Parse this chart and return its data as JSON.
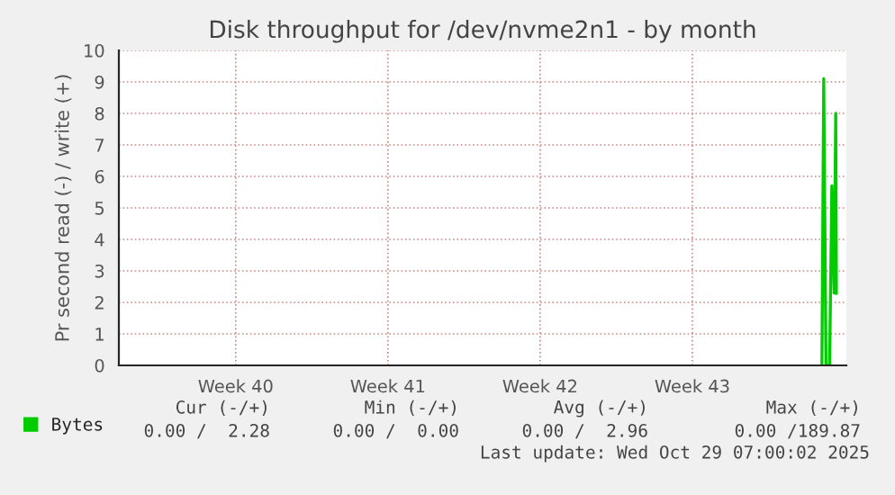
{
  "chart_data": {
    "type": "line",
    "title": "Disk throughput for /dev/nvme2n1 - by month",
    "ylabel": "Pr second read (-) / write (+)",
    "x": [
      "2025-10-28T04:00",
      "2025-10-28T06:00",
      "2025-10-28T08:30",
      "2025-10-28T12:30",
      "2025-10-28T15:00",
      "2025-10-28T17:30",
      "2025-10-28T19:15",
      "2025-10-28T20:00"
    ],
    "series": [
      {
        "name": "Bytes",
        "color": "#00cc00",
        "values": [
          0,
          9.1,
          0,
          0,
          5.7,
          2.3,
          8.0,
          2.28
        ]
      }
    ],
    "xlim": [
      "2025-09-25T20:00",
      "2025-10-29T07:00"
    ],
    "xticks": [
      {
        "value": "2025-10-01T05:00",
        "label": "Week 40"
      },
      {
        "value": "2025-10-08T05:00",
        "label": "Week 41"
      },
      {
        "value": "2025-10-15T05:00",
        "label": "Week 42"
      },
      {
        "value": "2025-10-22T05:00",
        "label": "Week 43"
      }
    ],
    "ylim": [
      0,
      10
    ],
    "yticks": [
      0,
      1,
      2,
      3,
      4,
      5,
      6,
      7,
      8,
      9,
      10
    ],
    "grid": true,
    "legend": "bottom left",
    "annotations": [
      "Cur (-/+)",
      "Min (-/+)",
      "Avg (-/+)",
      "Max (-/+)",
      "0.00 /  2.28",
      "0.00 /  0.00",
      "0.00 /  2.96",
      "0.00 /189.87",
      "Last update: Wed Oct 29 07:00:02 2025"
    ]
  }
}
